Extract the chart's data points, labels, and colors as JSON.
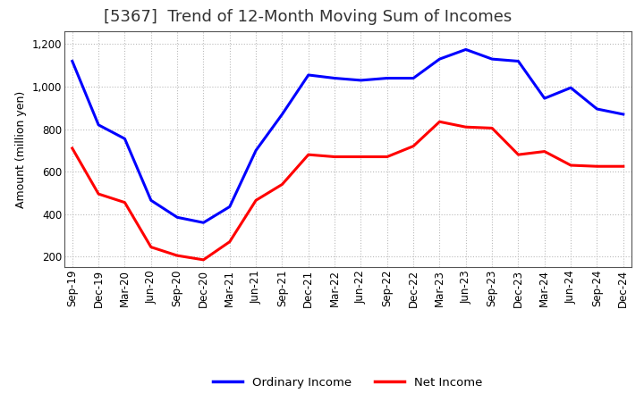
{
  "title": "[5367]  Trend of 12-Month Moving Sum of Incomes",
  "ylabel": "Amount (million yen)",
  "x_labels": [
    "Sep-19",
    "Dec-19",
    "Mar-20",
    "Jun-20",
    "Sep-20",
    "Dec-20",
    "Mar-21",
    "Jun-21",
    "Sep-21",
    "Dec-21",
    "Mar-22",
    "Jun-22",
    "Sep-22",
    "Dec-22",
    "Mar-23",
    "Jun-23",
    "Sep-23",
    "Dec-23",
    "Mar-24",
    "Jun-24",
    "Sep-24",
    "Dec-24"
  ],
  "ordinary_income": [
    1120,
    820,
    755,
    465,
    385,
    360,
    435,
    700,
    870,
    1055,
    1040,
    1030,
    1040,
    1040,
    1130,
    1175,
    1130,
    1120,
    945,
    995,
    895,
    870
  ],
  "net_income": [
    710,
    495,
    455,
    245,
    205,
    185,
    270,
    465,
    540,
    680,
    670,
    670,
    670,
    720,
    835,
    810,
    805,
    680,
    695,
    630,
    625,
    625
  ],
  "ylim": [
    150,
    1260
  ],
  "yticks": [
    200,
    400,
    600,
    800,
    1000,
    1200
  ],
  "ordinary_color": "#0000ff",
  "net_color": "#ff0000",
  "bg_color": "#ffffff",
  "grid_color": "#bbbbbb",
  "title_fontsize": 13,
  "label_fontsize": 9,
  "tick_fontsize": 8.5,
  "legend_fontsize": 9.5,
  "linewidth": 2.2
}
